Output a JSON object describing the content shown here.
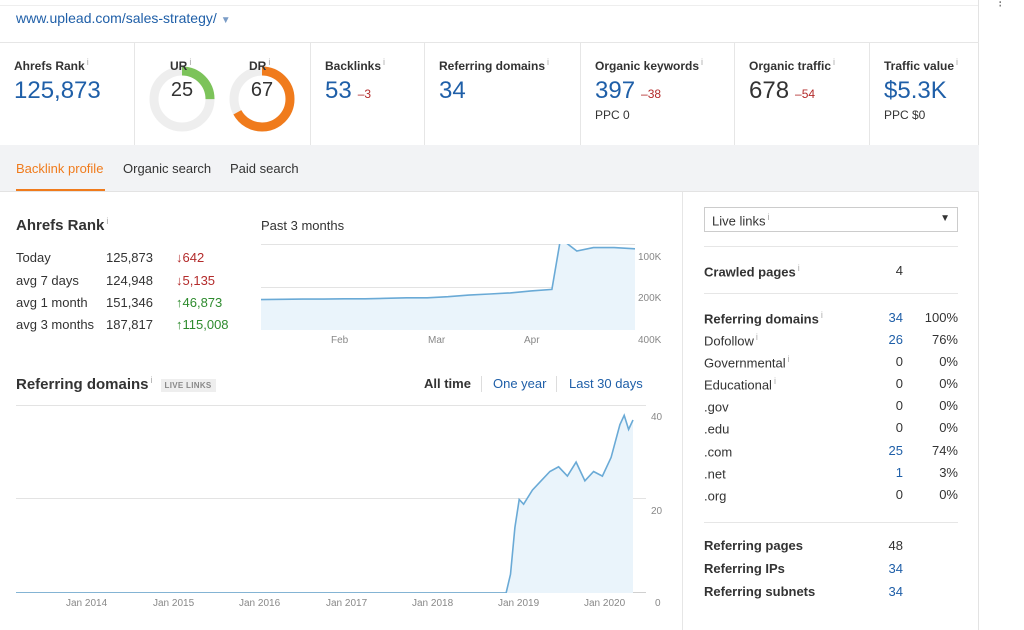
{
  "url": "www.uplead.com/sales-strategy/",
  "right_icon": "⁝",
  "metrics": [
    {
      "label": "Ahrefs Rank",
      "info": "i",
      "value": "125,873",
      "delta": "",
      "sub": ""
    },
    {
      "label": "UR",
      "info": "i",
      "value": "25",
      "gauge": 25
    },
    {
      "label": "DR",
      "info": "i",
      "value": "67",
      "gauge": 67
    },
    {
      "label": "Backlinks",
      "info": "i",
      "value": "53",
      "delta": "–3",
      "sub": ""
    },
    {
      "label": "Referring domains",
      "info": "i",
      "value": "34",
      "delta": "",
      "sub": ""
    },
    {
      "label": "Organic keywords",
      "info": "i",
      "value": "397",
      "delta": "–38",
      "sub": "PPC 0"
    },
    {
      "label": "Organic traffic",
      "info": "i",
      "value": "678",
      "delta": "–54",
      "sub": ""
    },
    {
      "label": "Traffic value",
      "info": "i",
      "value": "$5.3K",
      "delta": "",
      "sub": "PPC $0"
    }
  ],
  "tabs": [
    {
      "label": "Backlink profile",
      "active": true
    },
    {
      "label": "Organic search",
      "active": false
    },
    {
      "label": "Paid search",
      "active": false
    }
  ],
  "ahrefs_rank": {
    "title": "Ahrefs Rank",
    "info": "i",
    "period": "Past 3 months",
    "rows": [
      {
        "label": "Today",
        "value": "125,873",
        "change": "↓642",
        "dir": "down"
      },
      {
        "label": "avg 7 days",
        "value": "124,948",
        "change": "↓5,135",
        "dir": "down"
      },
      {
        "label": "avg 1 month",
        "value": "151,346",
        "change": "↑46,873",
        "dir": "up"
      },
      {
        "label": "avg 3 months",
        "value": "187,817",
        "change": "↑115,008",
        "dir": "up"
      }
    ]
  },
  "referring_domains": {
    "title": "Referring domains",
    "info": "i",
    "badge": "LIVE LINKS",
    "ranges": [
      "All time",
      "One year",
      "Last 30 days"
    ]
  },
  "colors": {
    "accent": "#f07b1c",
    "link": "#1f5fa8",
    "line": "#6aaad6",
    "fill": "#eaf4fb",
    "ur_gauge": "#7cc35a",
    "dr_gauge": "#f07b1c"
  },
  "chart_data": [
    {
      "type": "area",
      "title": "Ahrefs Rank",
      "subtitle": "Past 3 months",
      "x_ticks": [
        "Feb",
        "Mar",
        "Apr"
      ],
      "y_ticks": [
        "100K",
        "200K",
        "400K"
      ],
      "y_scale": "inverted-log",
      "x": [
        0,
        5,
        10,
        15,
        20,
        25,
        30,
        35,
        40,
        45,
        50,
        55,
        60,
        65,
        70,
        72,
        73,
        76,
        80,
        85,
        90
      ],
      "y": [
        245000,
        244000,
        243000,
        243000,
        242000,
        242000,
        240000,
        238000,
        238000,
        234000,
        228000,
        224000,
        220000,
        213000,
        208000,
        95000,
        96000,
        112000,
        106000,
        106000,
        108000
      ]
    },
    {
      "type": "area",
      "title": "Referring domains",
      "x_ticks": [
        "Jan 2014",
        "Jan 2015",
        "Jan 2016",
        "Jan 2017",
        "Jan 2018",
        "Jan 2019",
        "Jan 2020"
      ],
      "y_ticks": [
        "40",
        "20",
        "0"
      ],
      "ylim": [
        0,
        40
      ],
      "x": [
        2013.3,
        2018.9,
        2018.95,
        2019.0,
        2019.05,
        2019.1,
        2019.2,
        2019.3,
        2019.4,
        2019.5,
        2019.6,
        2019.7,
        2019.8,
        2019.9,
        2020.0,
        2020.1,
        2020.2,
        2020.25,
        2020.3,
        2020.35
      ],
      "y": [
        0,
        0,
        4,
        14,
        20,
        19,
        22,
        24,
        26,
        27,
        25,
        28,
        24,
        26,
        25,
        29,
        36,
        38,
        35,
        37
      ]
    }
  ],
  "right_panel": {
    "dropdown": {
      "label": "Live links",
      "info": "i",
      "caret": "▼"
    },
    "crawled": {
      "label": "Crawled pages",
      "info": "i",
      "value": "4"
    },
    "rows": [
      {
        "label": "Referring domains",
        "info": "i",
        "value": "34",
        "pct": "100%",
        "bold": true,
        "link": true
      },
      {
        "label": "Dofollow",
        "info": "i",
        "value": "26",
        "pct": "76%",
        "bold": false,
        "link": true
      },
      {
        "label": "Governmental",
        "info": "i",
        "value": "0",
        "pct": "0%",
        "bold": false,
        "link": false
      },
      {
        "label": "Educational",
        "info": "i",
        "value": "0",
        "pct": "0%",
        "bold": false,
        "link": false
      },
      {
        "label": ".gov",
        "info": "",
        "value": "0",
        "pct": "0%",
        "bold": false,
        "link": false
      },
      {
        "label": ".edu",
        "info": "",
        "value": "0",
        "pct": "0%",
        "bold": false,
        "link": false
      },
      {
        "label": ".com",
        "info": "",
        "value": "25",
        "pct": "74%",
        "bold": false,
        "link": true
      },
      {
        "label": ".net",
        "info": "",
        "value": "1",
        "pct": "3%",
        "bold": false,
        "link": true
      },
      {
        "label": ".org",
        "info": "",
        "value": "0",
        "pct": "0%",
        "bold": false,
        "link": false
      }
    ],
    "bottom": [
      {
        "label": "Referring pages",
        "value": "48",
        "link": false
      },
      {
        "label": "Referring IPs",
        "value": "34",
        "link": true
      },
      {
        "label": "Referring subnets",
        "value": "34",
        "link": true
      }
    ]
  }
}
